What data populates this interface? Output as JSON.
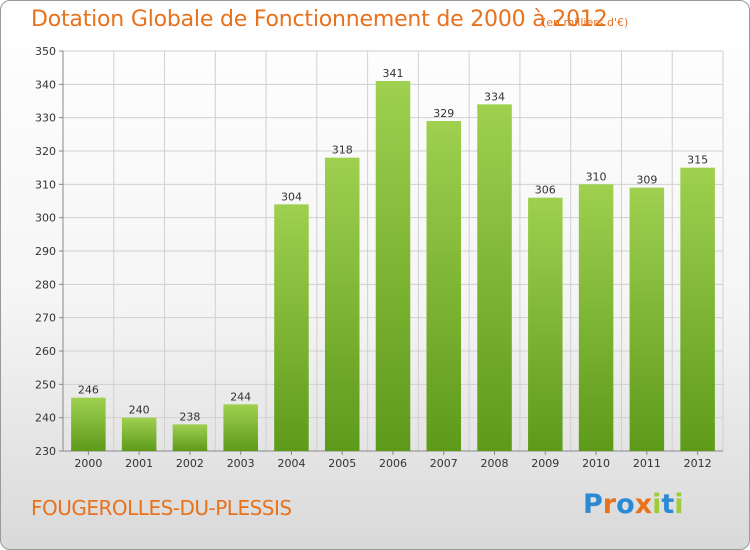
{
  "header": {
    "title": "Dotation Globale de Fonctionnement de 2000 à 2012",
    "unit": "(en milliers d'€)"
  },
  "footer": {
    "commune": "FOUGEROLLES-DU-PLESSIS",
    "logo_letters": [
      "P",
      "r",
      "o",
      "x",
      "i",
      "t",
      "i"
    ]
  },
  "colors": {
    "title": "#e8711c",
    "bar_top": "#9fd050",
    "bar_bottom": "#5e9a1a",
    "grid": "#d0d0d0",
    "logo_letters": [
      "#2a8ad4",
      "#e8711c",
      "#2a8ad4",
      "#e8711c",
      "#9fcb3a",
      "#2a8ad4",
      "#9fcb3a"
    ]
  },
  "chart_data": {
    "type": "bar",
    "title": "Dotation Globale de Fonctionnement de 2000 à 2012",
    "xlabel": "",
    "ylabel": "",
    "categories": [
      "2000",
      "2001",
      "2002",
      "2003",
      "2004",
      "2005",
      "2006",
      "2007",
      "2008",
      "2009",
      "2010",
      "2011",
      "2012"
    ],
    "values": [
      246,
      240,
      238,
      244,
      304,
      318,
      341,
      329,
      334,
      306,
      310,
      309,
      315
    ],
    "ylim": [
      230,
      350
    ],
    "yticks": [
      230,
      240,
      250,
      260,
      270,
      280,
      290,
      300,
      310,
      320,
      330,
      340,
      350
    ],
    "grid": true,
    "data_labels": true
  }
}
